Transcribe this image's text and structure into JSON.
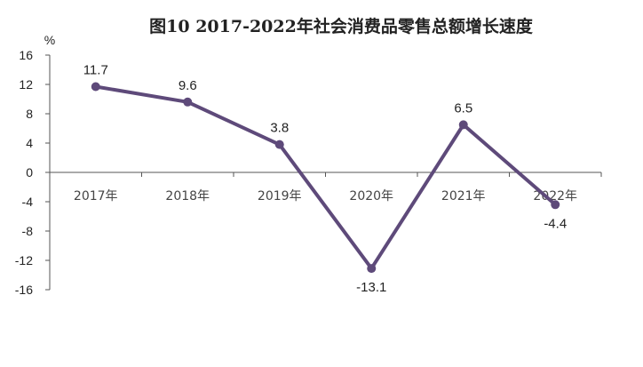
{
  "chart_data": {
    "type": "line",
    "title": "图10 2017-2022年社会消费品零售总额增长速度",
    "unit": "%",
    "categories": [
      "2017年",
      "2018年",
      "2019年",
      "2020年",
      "2021年",
      "2022年"
    ],
    "values": [
      11.7,
      9.6,
      3.8,
      -13.1,
      6.5,
      -4.4
    ],
    "data_labels": [
      "11.7",
      "9.6",
      "3.8",
      "-13.1",
      "6.5",
      "-4.4"
    ],
    "ylim": [
      -16,
      16
    ],
    "yticks": [
      16,
      12,
      8,
      4,
      0,
      -4,
      -8,
      -12,
      -16
    ],
    "ytick_labels": [
      "16",
      "12",
      "8",
      "4",
      "0",
      "-4",
      "-8",
      "-12",
      "-16"
    ],
    "line_color": "#5e4a7a",
    "axis_color": "#555555",
    "grid": false,
    "legend": false
  }
}
